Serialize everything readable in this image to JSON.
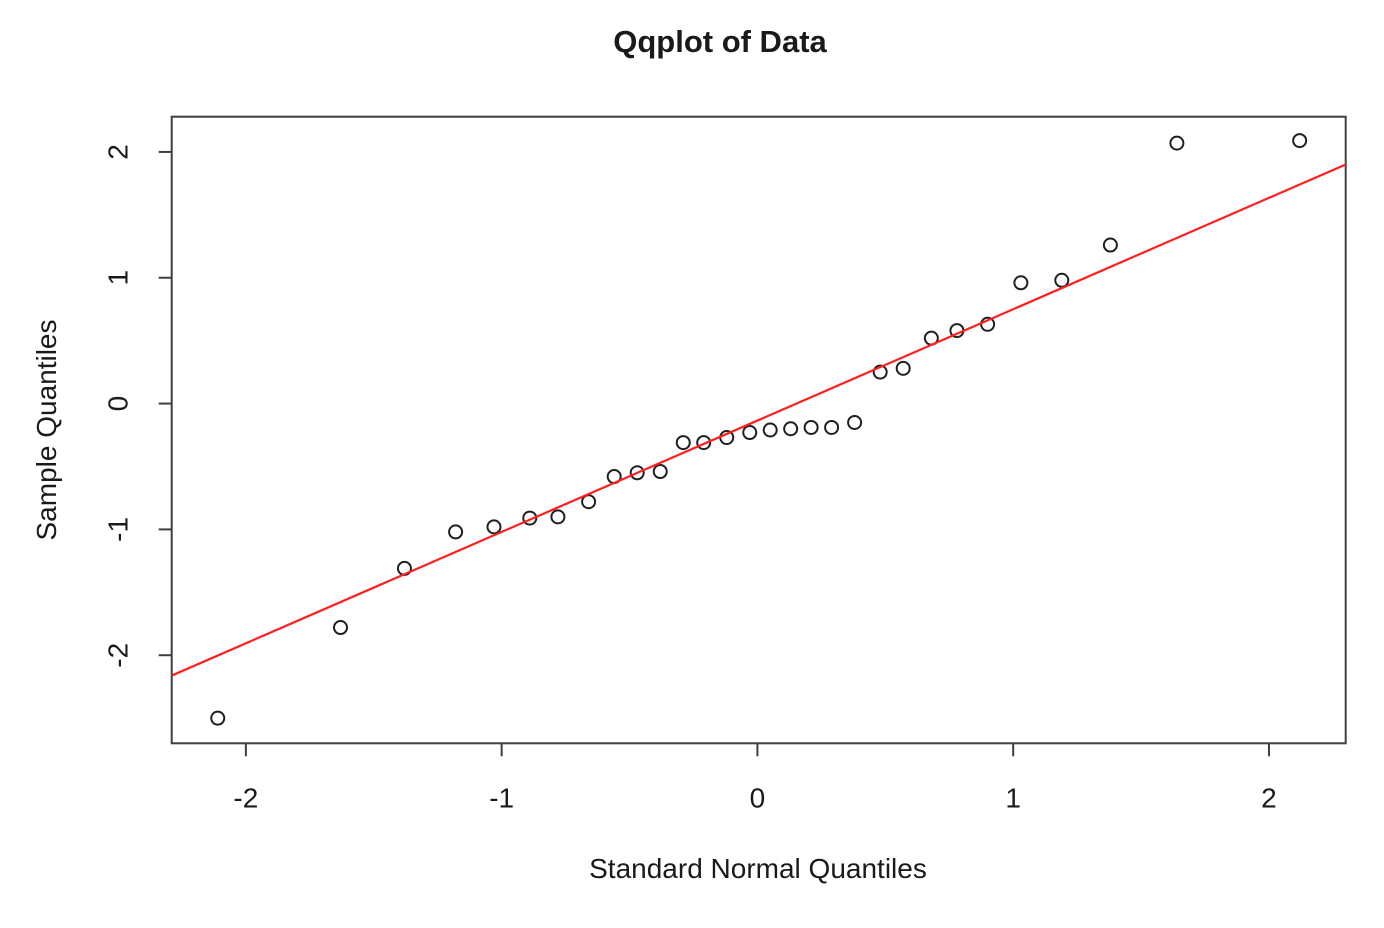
{
  "chart_data": {
    "type": "scatter",
    "title": "Qqplot of Data",
    "xlabel": "Standard Normal Quantiles",
    "ylabel": "Sample Quantiles",
    "xlim": [
      -2.29,
      2.3
    ],
    "ylim": [
      -2.7,
      2.28
    ],
    "x_ticks": [
      "-2",
      "-1",
      "0",
      "1",
      "2"
    ],
    "x_tick_values": [
      -2,
      -1,
      0,
      1,
      2
    ],
    "y_ticks": [
      "-2",
      "-1",
      "0",
      "1",
      "2"
    ],
    "y_tick_values": [
      -2,
      -1,
      0,
      1,
      2
    ],
    "grid": false,
    "legend": null,
    "points": [
      [
        -2.11,
        -2.5
      ],
      [
        -1.63,
        -1.78
      ],
      [
        -1.38,
        -1.31
      ],
      [
        -1.18,
        -1.02
      ],
      [
        -1.03,
        -0.98
      ],
      [
        -0.89,
        -0.91
      ],
      [
        -0.78,
        -0.9
      ],
      [
        -0.66,
        -0.78
      ],
      [
        -0.56,
        -0.58
      ],
      [
        -0.47,
        -0.55
      ],
      [
        -0.38,
        -0.54
      ],
      [
        -0.29,
        -0.31
      ],
      [
        -0.21,
        -0.31
      ],
      [
        -0.12,
        -0.27
      ],
      [
        -0.03,
        -0.23
      ],
      [
        0.05,
        -0.21
      ],
      [
        0.13,
        -0.2
      ],
      [
        0.21,
        -0.19
      ],
      [
        0.29,
        -0.19
      ],
      [
        0.38,
        -0.15
      ],
      [
        0.48,
        0.25
      ],
      [
        0.57,
        0.28
      ],
      [
        0.68,
        0.52
      ],
      [
        0.78,
        0.58
      ],
      [
        0.9,
        0.63
      ],
      [
        1.03,
        0.96
      ],
      [
        1.19,
        0.98
      ],
      [
        1.38,
        1.26
      ],
      [
        1.64,
        2.07
      ],
      [
        2.12,
        2.09
      ]
    ],
    "reference_line": {
      "slope": 0.885,
      "intercept": -0.135,
      "color": "#ff1f1f"
    },
    "point_style": {
      "marker": "open-circle",
      "stroke_color": "#1f1f1f"
    },
    "colors": {
      "axis_stroke": "#3f3f3f",
      "text": "#1a1a1a",
      "background": "#ffffff"
    }
  }
}
